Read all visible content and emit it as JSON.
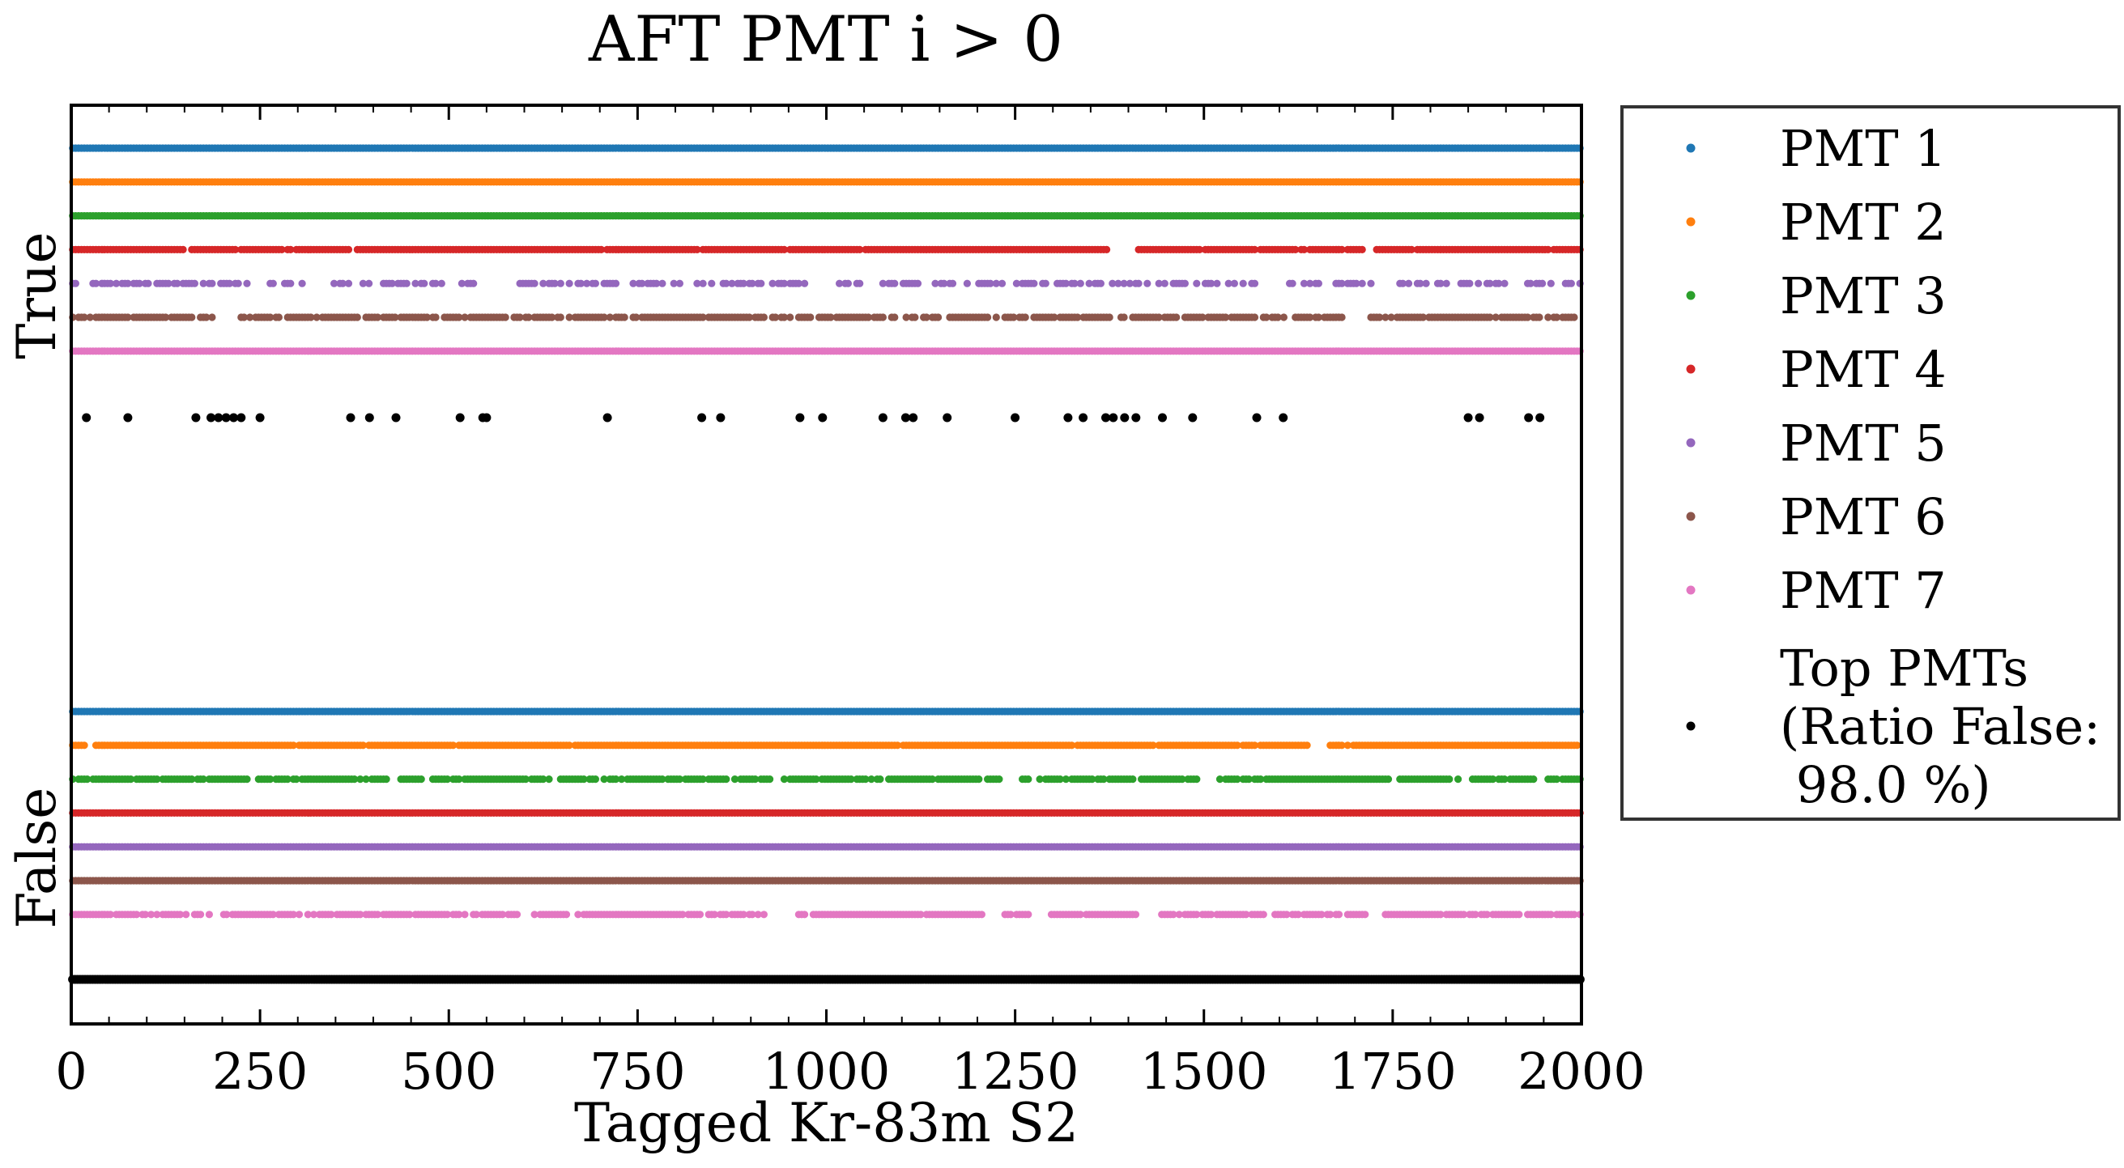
{
  "chart_data": {
    "type": "scatter",
    "title": "AFT PMT i > 0",
    "xlabel": "Tagged Kr-83m S2",
    "ylabel": "",
    "xlim": [
      0,
      2000
    ],
    "xticks": [
      "0",
      "250",
      "500",
      "750",
      "1000",
      "1250",
      "1500",
      "1750",
      "2000"
    ],
    "y_categories": [
      "True",
      "False"
    ],
    "grid": false,
    "legend": {
      "placement": "outside-right",
      "entries": [
        {
          "label": "PMT 1",
          "color": "#1f77b4"
        },
        {
          "label": "PMT 2",
          "color": "#ff7f0e"
        },
        {
          "label": "PMT 3",
          "color": "#2ca02c"
        },
        {
          "label": "PMT 4",
          "color": "#d62728"
        },
        {
          "label": "PMT 5",
          "color": "#9467bd"
        },
        {
          "label": "PMT 6",
          "color": "#8c564b"
        },
        {
          "label": "PMT 7",
          "color": "#e377c2"
        },
        {
          "label": "Top PMTs\n(Ratio False:\n 98.0 %)",
          "color": "#000000"
        }
      ]
    },
    "series": [
      {
        "name": "PMT 1",
        "color": "#1f77b4",
        "true_fraction": 0.8,
        "true_density": "dense",
        "false_density": "dense"
      },
      {
        "name": "PMT 2",
        "color": "#ff7f0e",
        "true_fraction": 0.65,
        "true_density": "dense",
        "false_density": "mostly-dense"
      },
      {
        "name": "PMT 3",
        "color": "#2ca02c",
        "true_fraction": 0.85,
        "true_density": "dense",
        "false_density": "medium"
      },
      {
        "name": "PMT 4",
        "color": "#d62728",
        "true_fraction": 0.3,
        "true_density": "mostly-dense",
        "false_density": "dense"
      },
      {
        "name": "PMT 5",
        "color": "#9467bd",
        "true_fraction": 0.15,
        "true_density": "sparse",
        "false_density": "dense"
      },
      {
        "name": "PMT 6",
        "color": "#8c564b",
        "true_fraction": 0.35,
        "true_density": "medium",
        "false_density": "dense"
      },
      {
        "name": "PMT 7",
        "color": "#e377c2",
        "true_fraction": 0.8,
        "true_density": "dense",
        "false_density": "medium"
      },
      {
        "name": "Top PMTs",
        "color": "#000000",
        "true_fraction": 0.02,
        "false_fraction": 0.98,
        "true_points_x": [
          20,
          75,
          165,
          185,
          195,
          205,
          215,
          225,
          250,
          370,
          395,
          430,
          515,
          545,
          550,
          710,
          835,
          860,
          965,
          995,
          1075,
          1105,
          1115,
          1160,
          1250,
          1320,
          1340,
          1370,
          1380,
          1395,
          1410,
          1445,
          1485,
          1570,
          1605,
          1850,
          1865,
          1930,
          1945
        ]
      }
    ]
  }
}
